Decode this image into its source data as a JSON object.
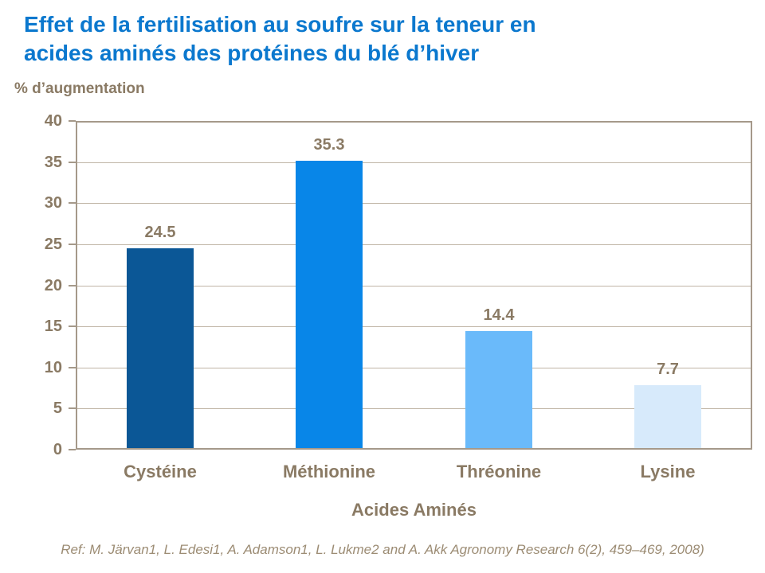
{
  "header": {
    "title_line1": "Effet de la fertilisation au soufre sur la teneur en",
    "title_line2": "acides aminés des protéines du blé d’hiver"
  },
  "chart_data": {
    "type": "bar",
    "title": "Effet de la fertilisation au soufre sur la teneur en acides aminés des protéines du blé d’hiver",
    "ylabel": "% d’augmentation",
    "xlabel": "Acides Aminés",
    "categories": [
      "Cystéine",
      "Méthionine",
      "Thréonine",
      "Lysine"
    ],
    "values": [
      24.5,
      35.3,
      14.4,
      7.7
    ],
    "data_labels": [
      "24.5",
      "35.3",
      "14.4",
      "7.7"
    ],
    "bar_colors": [
      "#0B5796",
      "#0886E8",
      "#6ABAFA",
      "#D7EAFB"
    ],
    "ylim": [
      0,
      40
    ],
    "ytick_step": 5,
    "ytick_labels": [
      "0",
      "5",
      "10",
      "15",
      "20",
      "25",
      "30",
      "35",
      "40"
    ],
    "grid": true,
    "legend": false
  },
  "colors": {
    "title_blue": "#0B78CE",
    "text_brown": "#8A7A64",
    "frame": "#A5998A",
    "gridline": "#C0B5A6",
    "reference": "#9C8C74",
    "background": "#FFFFFF"
  },
  "footer": {
    "reference": "Ref: M. Järvan1, L. Edesi1, A. Adamson1, L. Lukme2 and A. Akk Agronomy Research 6(2), 459–469, 2008)"
  }
}
